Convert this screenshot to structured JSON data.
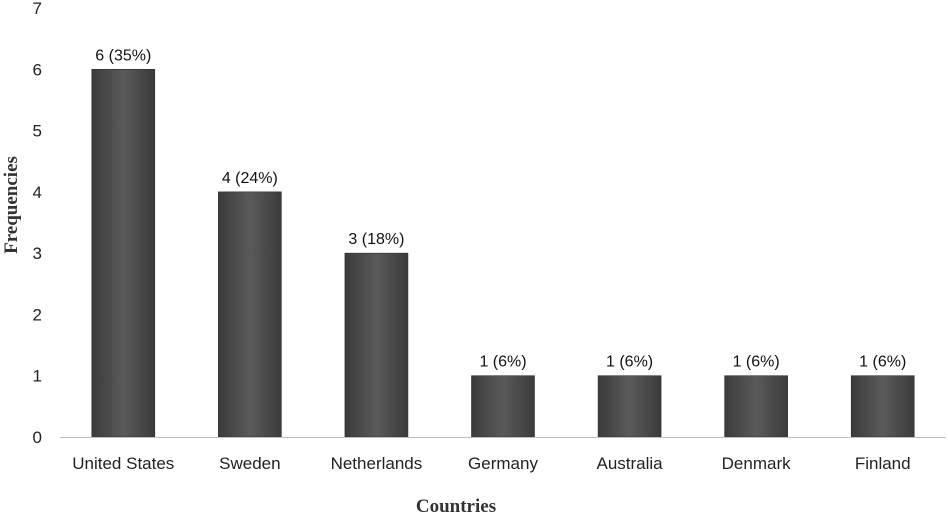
{
  "chart_data": {
    "type": "bar",
    "title": "",
    "xlabel": "Countries",
    "ylabel": "Frequencies",
    "ylim": [
      0,
      7
    ],
    "yticks": [
      0,
      1,
      2,
      3,
      4,
      5,
      6,
      7
    ],
    "grid": false,
    "legend": "none",
    "categories": [
      "United States",
      "Sweden",
      "Netherlands",
      "Germany",
      "Australia",
      "Denmark",
      "Finland"
    ],
    "values": [
      6,
      4,
      3,
      1,
      1,
      1,
      1
    ],
    "data_labels": [
      "6 (35%)",
      "4 (24%)",
      "3 (18%)",
      "1 (6%)",
      "1 (6%)",
      "1 (6%)",
      "1 (6%)"
    ],
    "colors": {
      "bar_dark": "#3b3b3b",
      "bar_light": "#5a5a5a",
      "axis": "#bfbfbf"
    }
  }
}
